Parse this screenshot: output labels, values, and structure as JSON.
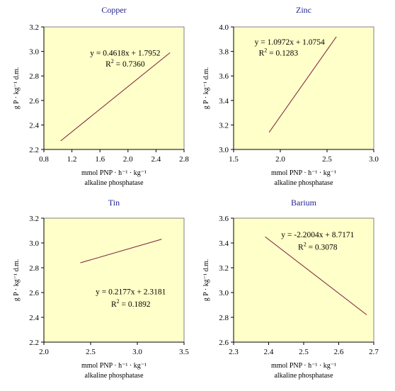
{
  "chart_data": [
    {
      "type": "line",
      "title": "Copper",
      "ylabel": "g P · kg⁻¹ d.m.",
      "xlabel_line1": "mmol PNP · h⁻¹ · kg⁻¹",
      "xlabel_line2": "alkaline phosphatase",
      "xlim": [
        0.8,
        2.8
      ],
      "ylim": [
        2.2,
        3.2
      ],
      "x_ticks": [
        "0.8",
        "1.2",
        "1.6",
        "2.0",
        "2.4",
        "2.8"
      ],
      "y_ticks": [
        "2.2",
        "2.4",
        "2.6",
        "2.8",
        "3.0",
        "3.2"
      ],
      "series": [
        {
          "x": [
            1.04,
            2.6
          ],
          "y": [
            2.27,
            2.99
          ]
        }
      ],
      "equation": "y = 0.4618x + 1.7952",
      "r2": "R² = 0.7360",
      "line_color": "#7a1f3d",
      "plot_bg": "#ffffc9"
    },
    {
      "type": "line",
      "title": "Zinc",
      "ylabel": "g P · kg⁻¹ d.m.",
      "xlabel_line1": "mmol PNP · h⁻¹ · kg⁻¹",
      "xlabel_line2": "alkaline phosphatase",
      "xlim": [
        1.5,
        3.0
      ],
      "ylim": [
        3.0,
        4.0
      ],
      "x_ticks": [
        "1.5",
        "2.0",
        "2.5",
        "3.0"
      ],
      "y_ticks": [
        "3.0",
        "3.2",
        "3.4",
        "3.6",
        "3.8",
        "4.0"
      ],
      "series": [
        {
          "x": [
            1.88,
            2.6
          ],
          "y": [
            3.14,
            3.92
          ]
        }
      ],
      "equation": "y = 1.0972x + 1.0754",
      "r2": "R² = 0.1283",
      "line_color": "#7a1f3d",
      "plot_bg": "#ffffc9"
    },
    {
      "type": "line",
      "title": "Tin",
      "ylabel": "g P · kg⁻¹ d.m.",
      "xlabel_line1": "mmol PNP · h⁻¹ · kg⁻¹",
      "xlabel_line2": "alkaline phosphatase",
      "xlim": [
        2.0,
        3.5
      ],
      "ylim": [
        2.2,
        3.2
      ],
      "x_ticks": [
        "2.0",
        "2.5",
        "3.0",
        "3.5"
      ],
      "y_ticks": [
        "2.2",
        "2.4",
        "2.6",
        "2.8",
        "3.0",
        "3.2"
      ],
      "series": [
        {
          "x": [
            2.39,
            3.26
          ],
          "y": [
            2.84,
            3.03
          ]
        }
      ],
      "equation": "y = 0.2177x + 2.3181",
      "r2": "R² = 0.1892",
      "line_color": "#7a1f3d",
      "plot_bg": "#ffffc9"
    },
    {
      "type": "line",
      "title": "Barium",
      "ylabel": "g P · kg⁻¹ d.m.",
      "xlabel_line1": "mmol PNP · h⁻¹ · kg⁻¹",
      "xlabel_line2": "alkaline phosphatase",
      "xlim": [
        2.3,
        2.7
      ],
      "ylim": [
        2.6,
        3.6
      ],
      "x_ticks": [
        "2.3",
        "2.4",
        "2.5",
        "2.6",
        "2.7"
      ],
      "y_ticks": [
        "2.6",
        "2.8",
        "3.0",
        "3.2",
        "3.4",
        "3.6"
      ],
      "series": [
        {
          "x": [
            2.39,
            2.68
          ],
          "y": [
            3.45,
            2.82
          ]
        }
      ],
      "equation": "y = -2.2004x + 8.7171",
      "r2": "R² = 0.3078",
      "line_color": "#7a1f3d",
      "plot_bg": "#ffffc9"
    }
  ]
}
